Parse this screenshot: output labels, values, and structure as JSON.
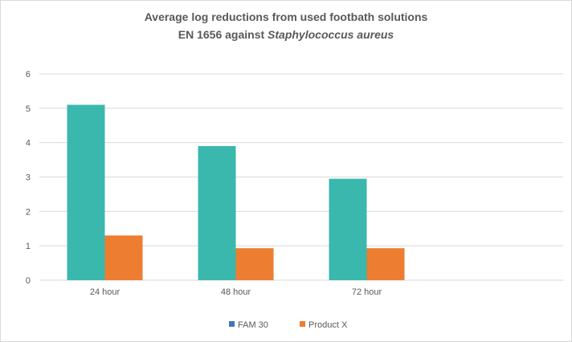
{
  "chart_data": {
    "type": "bar",
    "title_line1": "Average log reductions from used footbath solutions",
    "title_line2_prefix": "EN 1656 against ",
    "title_line2_italic": "Staphylococcus aureus",
    "categories": [
      "24 hour",
      "48 hour",
      "72 hour"
    ],
    "series": [
      {
        "name": "FAM 30",
        "values": [
          5.1,
          3.9,
          2.95
        ],
        "color": "#3ab8ad",
        "legend_color": "#4472c4"
      },
      {
        "name": "Product X",
        "values": [
          1.3,
          0.93,
          0.93
        ],
        "color": "#ed7d31",
        "legend_color": "#ed7d31"
      }
    ],
    "ylim": [
      0,
      6
    ],
    "yticks": [
      "0",
      "1",
      "2",
      "3",
      "4",
      "5",
      "6"
    ],
    "grid": true,
    "legend_position": "bottom",
    "colors": {
      "gridline": "#d9d9d9",
      "text": "#595959"
    }
  }
}
